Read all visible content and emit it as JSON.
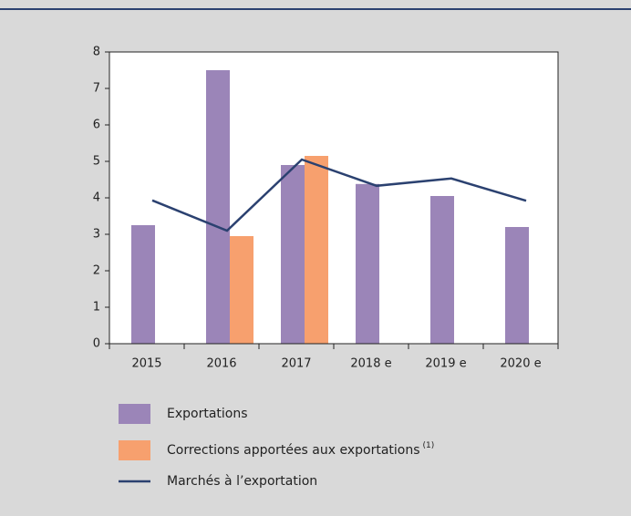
{
  "chart_data": {
    "type": "bar",
    "categories": [
      "2015",
      "2016",
      "2017",
      "2018 e",
      "2019 e",
      "2020 e"
    ],
    "series": [
      {
        "name": "Exportations",
        "color": "#9b85b8",
        "values": [
          3.25,
          7.5,
          4.9,
          4.38,
          4.05,
          3.2
        ]
      },
      {
        "name": "Corrections apportées aux exportations",
        "footnote_marker": "(1)",
        "color": "#f7a06e",
        "values": [
          null,
          2.95,
          5.15,
          null,
          null,
          null
        ]
      },
      {
        "name": "Marchés à l’exportation",
        "type": "line",
        "color": "#2b4170",
        "values": [
          3.93,
          3.1,
          5.05,
          4.33,
          4.53,
          3.92
        ]
      }
    ],
    "ylim": [
      0,
      8
    ],
    "yticks": [
      0,
      1,
      2,
      3,
      4,
      5,
      6,
      7,
      8
    ]
  }
}
